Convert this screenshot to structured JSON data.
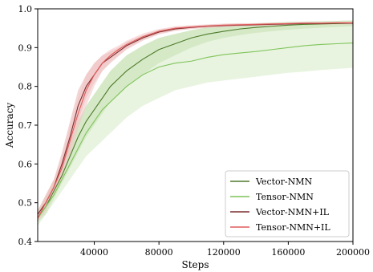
{
  "chart_data": {
    "type": "line",
    "xlabel": "Steps",
    "ylabel": "Accuracy",
    "xlim": [
      5000,
      200000
    ],
    "ylim": [
      0.4,
      1.0
    ],
    "xticks": [
      40000,
      80000,
      120000,
      160000,
      200000
    ],
    "xtick_labels": [
      "40000",
      "80000",
      "120000",
      "160000",
      "200000"
    ],
    "yticks": [
      0.4,
      0.5,
      0.6,
      0.7,
      0.8,
      0.9,
      1.0
    ],
    "ytick_labels": [
      "0.4",
      "0.5",
      "0.6",
      "0.7",
      "0.8",
      "0.9",
      "1.0"
    ],
    "grid": false,
    "legend_position": "bottom-right",
    "x": [
      5000,
      10000,
      15000,
      20000,
      25000,
      30000,
      35000,
      40000,
      45000,
      50000,
      55000,
      60000,
      70000,
      80000,
      90000,
      100000,
      110000,
      120000,
      130000,
      140000,
      150000,
      160000,
      170000,
      180000,
      190000,
      200000
    ],
    "series": [
      {
        "name": "Vector-NMN",
        "color": "#4e7a2a",
        "fill": "#b5d39b",
        "values": [
          0.46,
          0.49,
          0.53,
          0.57,
          0.62,
          0.67,
          0.71,
          0.74,
          0.77,
          0.8,
          0.82,
          0.84,
          0.87,
          0.895,
          0.91,
          0.925,
          0.935,
          0.942,
          0.948,
          0.952,
          0.955,
          0.958,
          0.96,
          0.961,
          0.962,
          0.963
        ],
        "lower": [
          0.45,
          0.47,
          0.51,
          0.55,
          0.59,
          0.63,
          0.67,
          0.7,
          0.73,
          0.76,
          0.78,
          0.8,
          0.83,
          0.86,
          0.88,
          0.9,
          0.915,
          0.925,
          0.932,
          0.938,
          0.942,
          0.946,
          0.949,
          0.951,
          0.953,
          0.955
        ],
        "upper": [
          0.47,
          0.51,
          0.55,
          0.59,
          0.65,
          0.71,
          0.75,
          0.78,
          0.81,
          0.84,
          0.86,
          0.88,
          0.905,
          0.925,
          0.935,
          0.945,
          0.952,
          0.957,
          0.96,
          0.962,
          0.964,
          0.966,
          0.967,
          0.968,
          0.969,
          0.97
        ]
      },
      {
        "name": "Tensor-NMN",
        "color": "#7fc45a",
        "fill": "#d6ebc6",
        "values": [
          0.46,
          0.49,
          0.52,
          0.56,
          0.6,
          0.64,
          0.68,
          0.71,
          0.74,
          0.76,
          0.78,
          0.8,
          0.83,
          0.85,
          0.86,
          0.865,
          0.875,
          0.882,
          0.886,
          0.89,
          0.895,
          0.9,
          0.905,
          0.908,
          0.91,
          0.912
        ],
        "lower": [
          0.44,
          0.47,
          0.5,
          0.53,
          0.56,
          0.59,
          0.62,
          0.64,
          0.66,
          0.68,
          0.7,
          0.72,
          0.75,
          0.77,
          0.79,
          0.8,
          0.81,
          0.815,
          0.82,
          0.825,
          0.83,
          0.835,
          0.838,
          0.842,
          0.845,
          0.848
        ],
        "upper": [
          0.48,
          0.52,
          0.56,
          0.6,
          0.65,
          0.7,
          0.74,
          0.78,
          0.81,
          0.84,
          0.86,
          0.88,
          0.905,
          0.925,
          0.935,
          0.945,
          0.952,
          0.957,
          0.96,
          0.963,
          0.965,
          0.966,
          0.967,
          0.968,
          0.969,
          0.97
        ]
      },
      {
        "name": "Vector-NMN+IL",
        "color": "#7a2c2c",
        "fill": "#e7b3b3",
        "values": [
          0.47,
          0.5,
          0.54,
          0.6,
          0.67,
          0.75,
          0.8,
          0.83,
          0.86,
          0.875,
          0.89,
          0.905,
          0.925,
          0.94,
          0.948,
          0.952,
          0.955,
          0.957,
          0.958,
          0.959,
          0.96,
          0.961,
          0.962,
          0.962,
          0.963,
          0.963
        ],
        "lower": [
          0.46,
          0.49,
          0.53,
          0.58,
          0.64,
          0.71,
          0.77,
          0.81,
          0.84,
          0.86,
          0.878,
          0.895,
          0.918,
          0.934,
          0.943,
          0.948,
          0.951,
          0.953,
          0.955,
          0.956,
          0.957,
          0.958,
          0.959,
          0.959,
          0.96,
          0.96
        ],
        "upper": [
          0.48,
          0.52,
          0.56,
          0.63,
          0.71,
          0.79,
          0.83,
          0.86,
          0.88,
          0.89,
          0.9,
          0.915,
          0.932,
          0.946,
          0.953,
          0.956,
          0.959,
          0.961,
          0.962,
          0.962,
          0.963,
          0.964,
          0.965,
          0.965,
          0.966,
          0.966
        ]
      },
      {
        "name": "Tensor-NMN+IL",
        "color": "#e05a5a",
        "fill": "#f2c4c4",
        "values": [
          0.46,
          0.5,
          0.54,
          0.59,
          0.66,
          0.73,
          0.79,
          0.83,
          0.86,
          0.88,
          0.895,
          0.908,
          0.928,
          0.942,
          0.95,
          0.953,
          0.956,
          0.958,
          0.959,
          0.96,
          0.961,
          0.962,
          0.963,
          0.963,
          0.964,
          0.964
        ],
        "lower": [
          0.45,
          0.48,
          0.52,
          0.56,
          0.62,
          0.69,
          0.75,
          0.8,
          0.84,
          0.865,
          0.882,
          0.897,
          0.92,
          0.936,
          0.945,
          0.949,
          0.952,
          0.954,
          0.956,
          0.957,
          0.958,
          0.959,
          0.96,
          0.96,
          0.961,
          0.961
        ],
        "upper": [
          0.47,
          0.52,
          0.56,
          0.62,
          0.7,
          0.77,
          0.83,
          0.86,
          0.88,
          0.895,
          0.905,
          0.918,
          0.936,
          0.948,
          0.955,
          0.958,
          0.96,
          0.962,
          0.963,
          0.963,
          0.964,
          0.965,
          0.966,
          0.966,
          0.967,
          0.967
        ]
      }
    ]
  }
}
